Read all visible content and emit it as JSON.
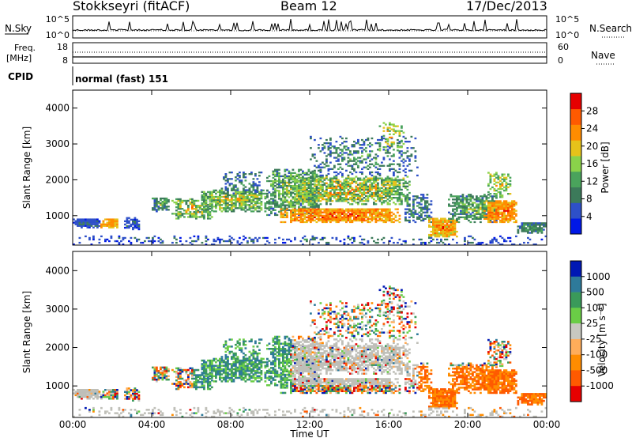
{
  "header": {
    "station": "Stokkseyri (fitACF)",
    "beam": "Beam 12",
    "date": "17/Dec/2013"
  },
  "noise_panel": {
    "left_label": "N.Sky",
    "left_ticks": [
      "10^5",
      "10^0"
    ],
    "right_label": "N.Search",
    "right_ticks": [
      "10^5",
      "10^0"
    ]
  },
  "freq_panel": {
    "left_label_1": "Freq.",
    "left_label_2": "[MHz]",
    "left_ticks": [
      "18",
      "8"
    ],
    "right_label": "Nave",
    "right_ticks": [
      "60",
      "0"
    ]
  },
  "cpid": {
    "label": "CPID",
    "text": "normal (fast) 151"
  },
  "colors": {
    "power_scale": [
      "#0018e6",
      "#2e50c8",
      "#3c7a5a",
      "#4aa35c",
      "#8ad24a",
      "#e6c21a",
      "#ff8c00",
      "#ff5a00",
      "#e60000"
    ],
    "velocity_scale": [
      "#e60000",
      "#ff5a00",
      "#ff8c00",
      "#ffad5a",
      "#c8c8c0",
      "#6acd46",
      "#3a9a5a",
      "#2e7a9a",
      "#0018b4"
    ],
    "ground_scatter": "#bfbfb8"
  },
  "chart_data": [
    {
      "type": "heatmap",
      "title": "Power",
      "xlabel": "",
      "ylabel": "Slant Range [km]",
      "x_ticks": [
        "00:00",
        "04:00",
        "08:00",
        "12:00",
        "16:00",
        "20:00",
        "00:00"
      ],
      "y_ticks": [
        "1000",
        "2000",
        "3000",
        "4000"
      ],
      "ylim": [
        180,
        4500
      ],
      "colorbar_label": "Power [dB]",
      "colorbar_ticks": [
        "4",
        "8",
        "12",
        "16",
        "20",
        "24",
        "28"
      ],
      "clim": [
        0,
        30
      ]
    },
    {
      "type": "heatmap",
      "title": "Velocity",
      "xlabel": "Time UT",
      "ylabel": "Slant Range [km]",
      "x_ticks": [
        "00:00",
        "04:00",
        "08:00",
        "12:00",
        "16:00",
        "20:00",
        "00:00"
      ],
      "y_ticks": [
        "1000",
        "2000",
        "3000",
        "4000"
      ],
      "ylim": [
        180,
        4500
      ],
      "colorbar_label": "Velocity [m s⁻¹]",
      "colorbar_ticks": [
        "1000",
        "500",
        "100",
        "25",
        "-25",
        "-100",
        "-500",
        "-1000"
      ]
    }
  ]
}
